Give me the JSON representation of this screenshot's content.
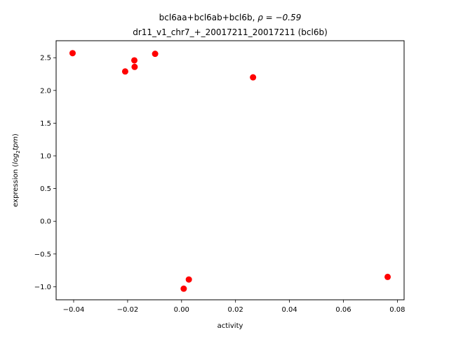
{
  "chart_data": {
    "type": "scatter",
    "title_line1_prefix": "bcl6aa+bcl6ab+bcl6b, ",
    "title_line1_math": "ρ = −0.59",
    "title_line2": "dr11_v1_chr7_+_20017211_20017211 (bcl6b)",
    "xlabel": "activity",
    "ylabel_prefix": "expression (",
    "ylabel_math_log": "log",
    "ylabel_math_sub": "2",
    "ylabel_math_tpm": "tpm",
    "ylabel_suffix": ")",
    "xlim": [
      -0.0465,
      0.0825
    ],
    "ylim": [
      -1.2,
      2.76
    ],
    "xticks": [
      -0.04,
      -0.02,
      0.0,
      0.02,
      0.04,
      0.06,
      0.08
    ],
    "xtick_labels": [
      "−0.04",
      "−0.02",
      "0.00",
      "0.02",
      "0.04",
      "0.06",
      "0.08"
    ],
    "yticks": [
      -1.0,
      -0.5,
      0.0,
      0.5,
      1.0,
      1.5,
      2.0,
      2.5
    ],
    "ytick_labels": [
      "−1.0",
      "−0.5",
      "0.0",
      "0.5",
      "1.0",
      "1.5",
      "2.0",
      "2.5"
    ],
    "grid": false,
    "marker_color": "#ff0000",
    "points": [
      {
        "x": -0.0404,
        "y": 2.57
      },
      {
        "x": -0.0209,
        "y": 2.29
      },
      {
        "x": -0.0175,
        "y": 2.46
      },
      {
        "x": -0.0174,
        "y": 2.36
      },
      {
        "x": -0.0098,
        "y": 2.56
      },
      {
        "x": 0.0265,
        "y": 2.2
      },
      {
        "x": 0.0008,
        "y": -1.03
      },
      {
        "x": 0.0027,
        "y": -0.89
      },
      {
        "x": 0.0764,
        "y": -0.85
      }
    ]
  }
}
